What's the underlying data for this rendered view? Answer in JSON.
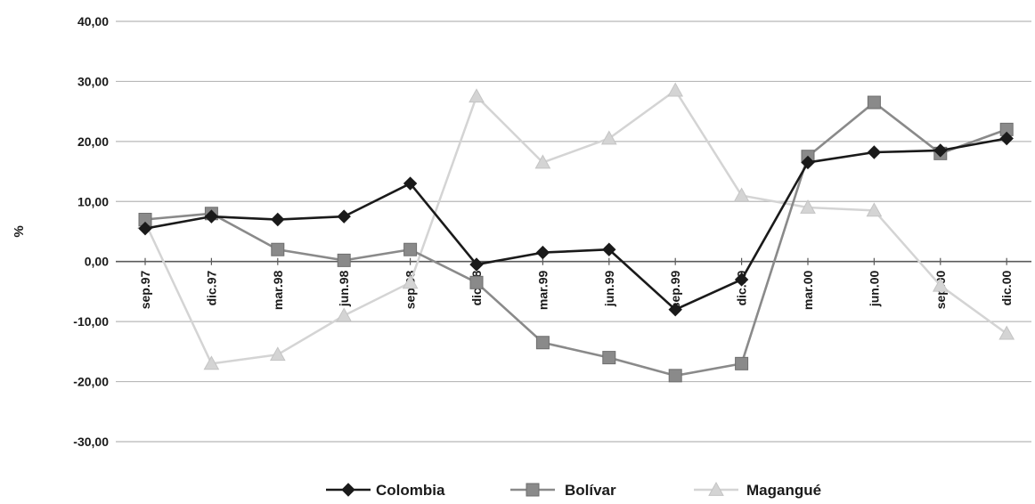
{
  "chart_data": {
    "type": "line",
    "title": "",
    "xlabel": "",
    "ylabel": "%",
    "ylim": [
      -30,
      40
    ],
    "yticks": [
      40,
      30,
      20,
      10,
      0,
      -10,
      -20,
      -30
    ],
    "ytick_labels": [
      "40,00",
      "30,00",
      "20,00",
      "10,00",
      "0,00",
      "-10,00",
      "-20,00",
      "-30,00"
    ],
    "grid": "horizontal",
    "legend_position": "bottom",
    "categories": [
      "sep.97",
      "dic.97",
      "mar.98",
      "jun.98",
      "sep.98",
      "dic.98",
      "mar.99",
      "jun.99",
      "sep.99",
      "dic.99",
      "mar.00",
      "jun.00",
      "sep.00",
      "dic.00"
    ],
    "series": [
      {
        "name": "Colombia",
        "color": "#1a1a1a",
        "marker": "diamond",
        "values": [
          5.5,
          7.5,
          7.0,
          7.5,
          13.0,
          -0.5,
          1.5,
          2.0,
          -8.0,
          -3.0,
          16.5,
          18.2,
          18.5,
          20.5
        ]
      },
      {
        "name": "Bolívar",
        "color": "#8a8a8a",
        "marker": "square",
        "values": [
          7.0,
          8.0,
          2.0,
          0.2,
          2.0,
          -3.5,
          -13.5,
          -16.0,
          -19.0,
          -17.0,
          17.5,
          26.5,
          18.0,
          22.0
        ]
      },
      {
        "name": "Magangué",
        "color": "#d4d4d4",
        "marker": "triangle",
        "values": [
          6.5,
          -17.0,
          -15.5,
          -9.0,
          -3.5,
          27.5,
          16.5,
          20.5,
          28.5,
          11.0,
          9.0,
          8.5,
          -4.0,
          -12.0
        ]
      }
    ]
  }
}
